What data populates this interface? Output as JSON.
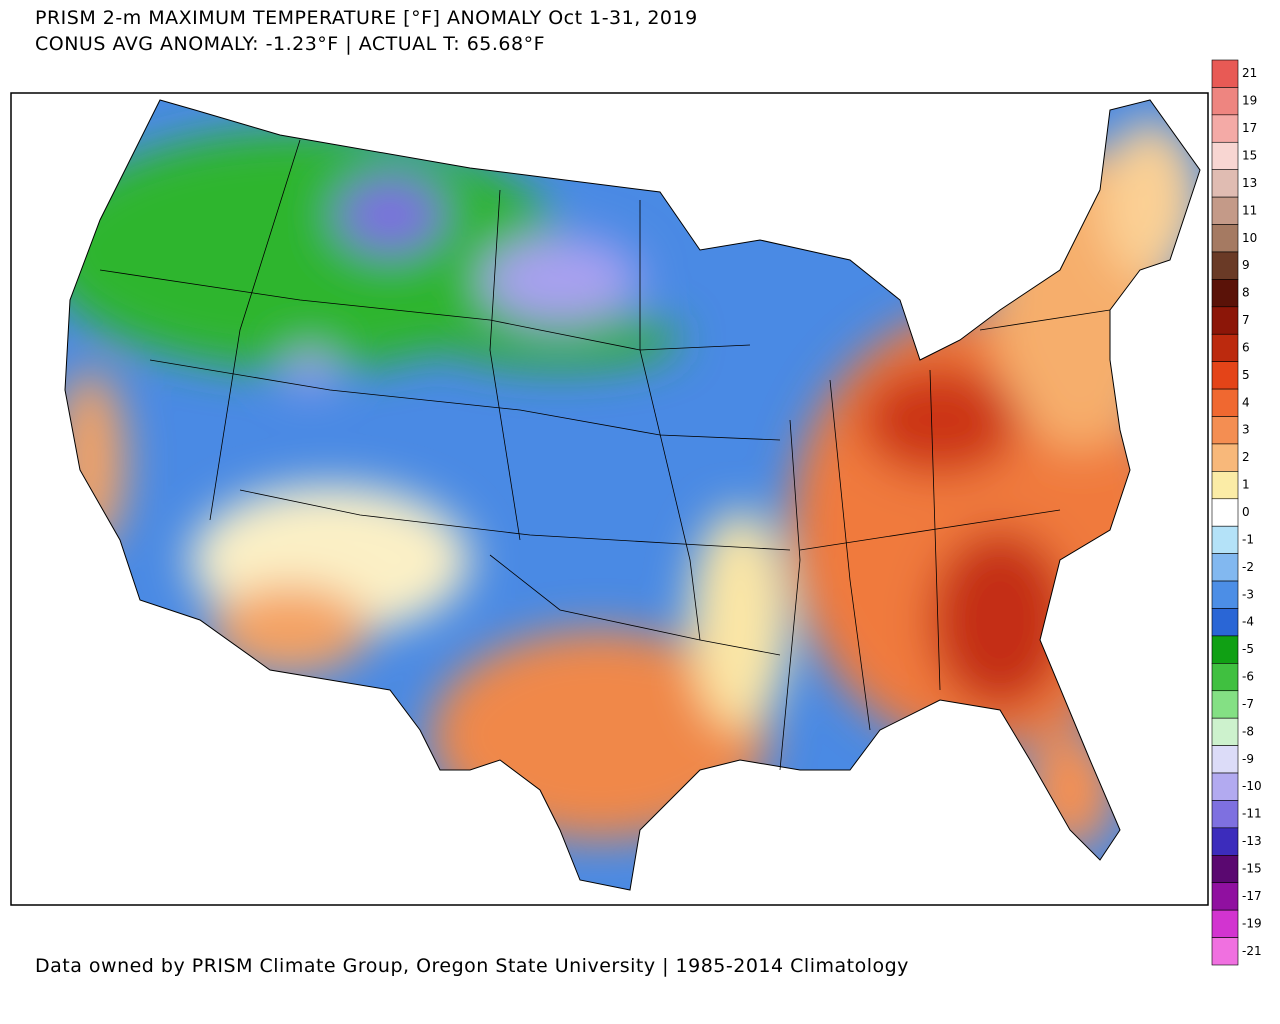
{
  "header": {
    "title": "PRISM 2-m MAXIMUM TEMPERATURE [°F] ANOMALY Oct 1-31, 2019",
    "subtitle": "CONUS AVG ANOMALY: -1.23°F | ACTUAL T: 65.68°F"
  },
  "footer": "Data owned by PRISM Climate Group, Oregon State University | 1985-2014 Climatology",
  "legend": {
    "items": [
      {
        "label": 21,
        "color": "#e85a55"
      },
      {
        "label": 19,
        "color": "#ee8580"
      },
      {
        "label": 17,
        "color": "#f4aaa6"
      },
      {
        "label": 15,
        "color": "#f8d6d2"
      },
      {
        "label": 13,
        "color": "#e0bcb2"
      },
      {
        "label": 11,
        "color": "#c49a88"
      },
      {
        "label": 10,
        "color": "#a57a62"
      },
      {
        "label": 9,
        "color": "#6a3a26"
      },
      {
        "label": 8,
        "color": "#5a1208"
      },
      {
        "label": 7,
        "color": "#8c1608"
      },
      {
        "label": 6,
        "color": "#bc2a0e"
      },
      {
        "label": 5,
        "color": "#e44418"
      },
      {
        "label": 4,
        "color": "#f06830"
      },
      {
        "label": 3,
        "color": "#f48e52"
      },
      {
        "label": 2,
        "color": "#f8b87a"
      },
      {
        "label": 1,
        "color": "#fbeca6"
      },
      {
        "label": 0,
        "color": "#ffffff"
      },
      {
        "label": -1,
        "color": "#b4e2f8"
      },
      {
        "label": -2,
        "color": "#82b8f0"
      },
      {
        "label": -3,
        "color": "#4c8ee6"
      },
      {
        "label": -4,
        "color": "#2a66d6"
      },
      {
        "label": -5,
        "color": "#10a014"
      },
      {
        "label": -6,
        "color": "#40c040"
      },
      {
        "label": -7,
        "color": "#84e084"
      },
      {
        "label": -8,
        "color": "#cdf2cd"
      },
      {
        "label": -9,
        "color": "#dcdcf8"
      },
      {
        "label": -10,
        "color": "#b2aaf0"
      },
      {
        "label": -11,
        "color": "#7e70e0"
      },
      {
        "label": -13,
        "color": "#3c2cbc"
      },
      {
        "label": -15,
        "color": "#5a0870"
      },
      {
        "label": -17,
        "color": "#9010a0"
      },
      {
        "label": -19,
        "color": "#d234d0"
      },
      {
        "label": -21,
        "color": "#f070e0"
      }
    ]
  }
}
